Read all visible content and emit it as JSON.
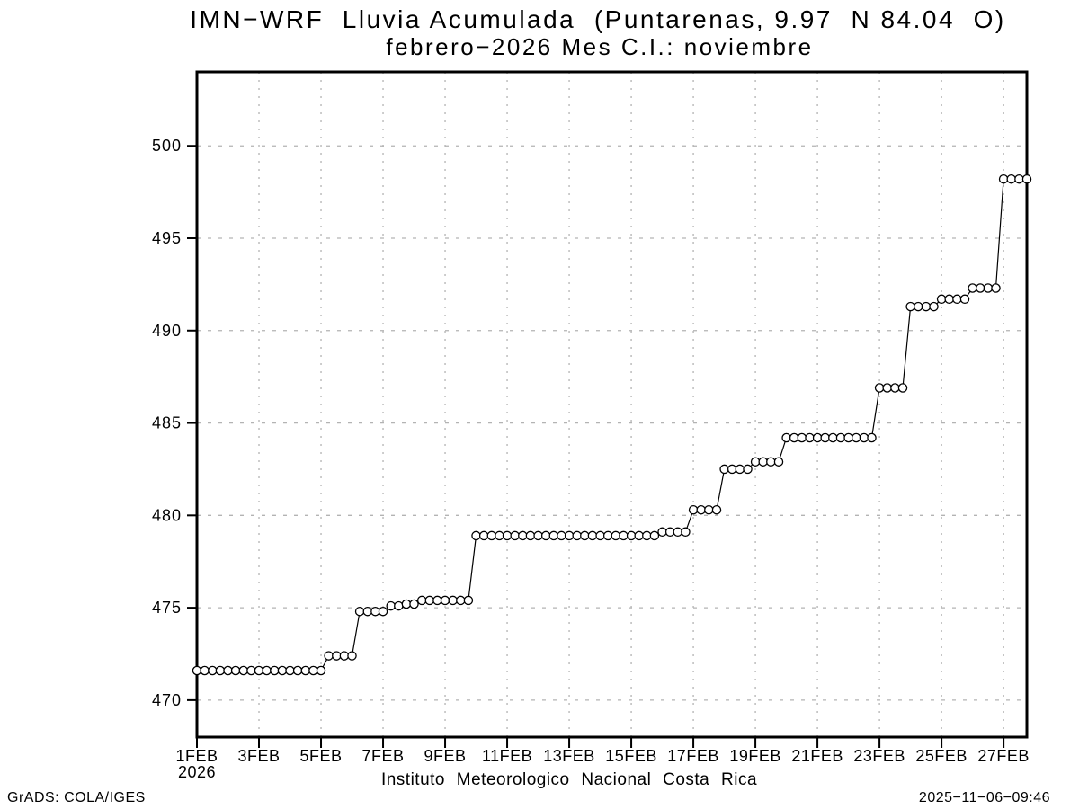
{
  "chart_data": {
    "type": "line",
    "title_line1": "IMN−WRF  Lluvia Acumulada  (Puntarenas, 9.97  N 84.04  O)",
    "title_line2": "febrero−2026 Mes C.I.: noviembre",
    "xlabel": "Instituto Meteorologico Nacional Costa Rica",
    "ylabel": "",
    "marker": "open-circle",
    "line_color": "#000000",
    "grid_color": "#b3b3b3",
    "grid_horizontal_style": "dashed",
    "grid_vertical_style": "dotted",
    "legend": "none",
    "x_start": "1FEB2026 00:00",
    "x_step_hours": 6,
    "x_tick_labels": [
      "1FEB",
      "3FEB",
      "5FEB",
      "7FEB",
      "9FEB",
      "11FEB",
      "13FEB",
      "15FEB",
      "17FEB",
      "19FEB",
      "21FEB",
      "23FEB",
      "25FEB",
      "27FEB"
    ],
    "x_tick_days": [
      0,
      2,
      4,
      6,
      8,
      10,
      12,
      14,
      16,
      18,
      20,
      22,
      24,
      26
    ],
    "x_start_year_label": "2026",
    "y_ticks": [
      470,
      475,
      480,
      485,
      490,
      495,
      500
    ],
    "ylim": [
      468,
      504
    ],
    "values": [
      471.6,
      471.6,
      471.6,
      471.6,
      471.6,
      471.6,
      471.6,
      471.6,
      471.6,
      471.6,
      471.6,
      471.6,
      471.6,
      471.6,
      471.6,
      471.6,
      471.6,
      472.4,
      472.4,
      472.4,
      472.4,
      474.8,
      474.8,
      474.8,
      474.8,
      475.1,
      475.1,
      475.2,
      475.2,
      475.4,
      475.4,
      475.4,
      475.4,
      475.4,
      475.4,
      475.4,
      478.9,
      478.9,
      478.9,
      478.9,
      478.9,
      478.9,
      478.9,
      478.9,
      478.9,
      478.9,
      478.9,
      478.9,
      478.9,
      478.9,
      478.9,
      478.9,
      478.9,
      478.9,
      478.9,
      478.9,
      478.9,
      478.9,
      478.9,
      478.9,
      479.1,
      479.1,
      479.1,
      479.1,
      480.3,
      480.3,
      480.3,
      480.3,
      482.5,
      482.5,
      482.5,
      482.5,
      482.9,
      482.9,
      482.9,
      482.9,
      484.2,
      484.2,
      484.2,
      484.2,
      484.2,
      484.2,
      484.2,
      484.2,
      484.2,
      484.2,
      484.2,
      484.2,
      486.9,
      486.9,
      486.9,
      486.9,
      491.3,
      491.3,
      491.3,
      491.3,
      491.7,
      491.7,
      491.7,
      491.7,
      492.3,
      492.3,
      492.3,
      492.3,
      498.2,
      498.2,
      498.2,
      498.2
    ]
  },
  "footer": {
    "left": "GrADS: COLA/IGES",
    "right": "2025−11−06−09:46"
  }
}
